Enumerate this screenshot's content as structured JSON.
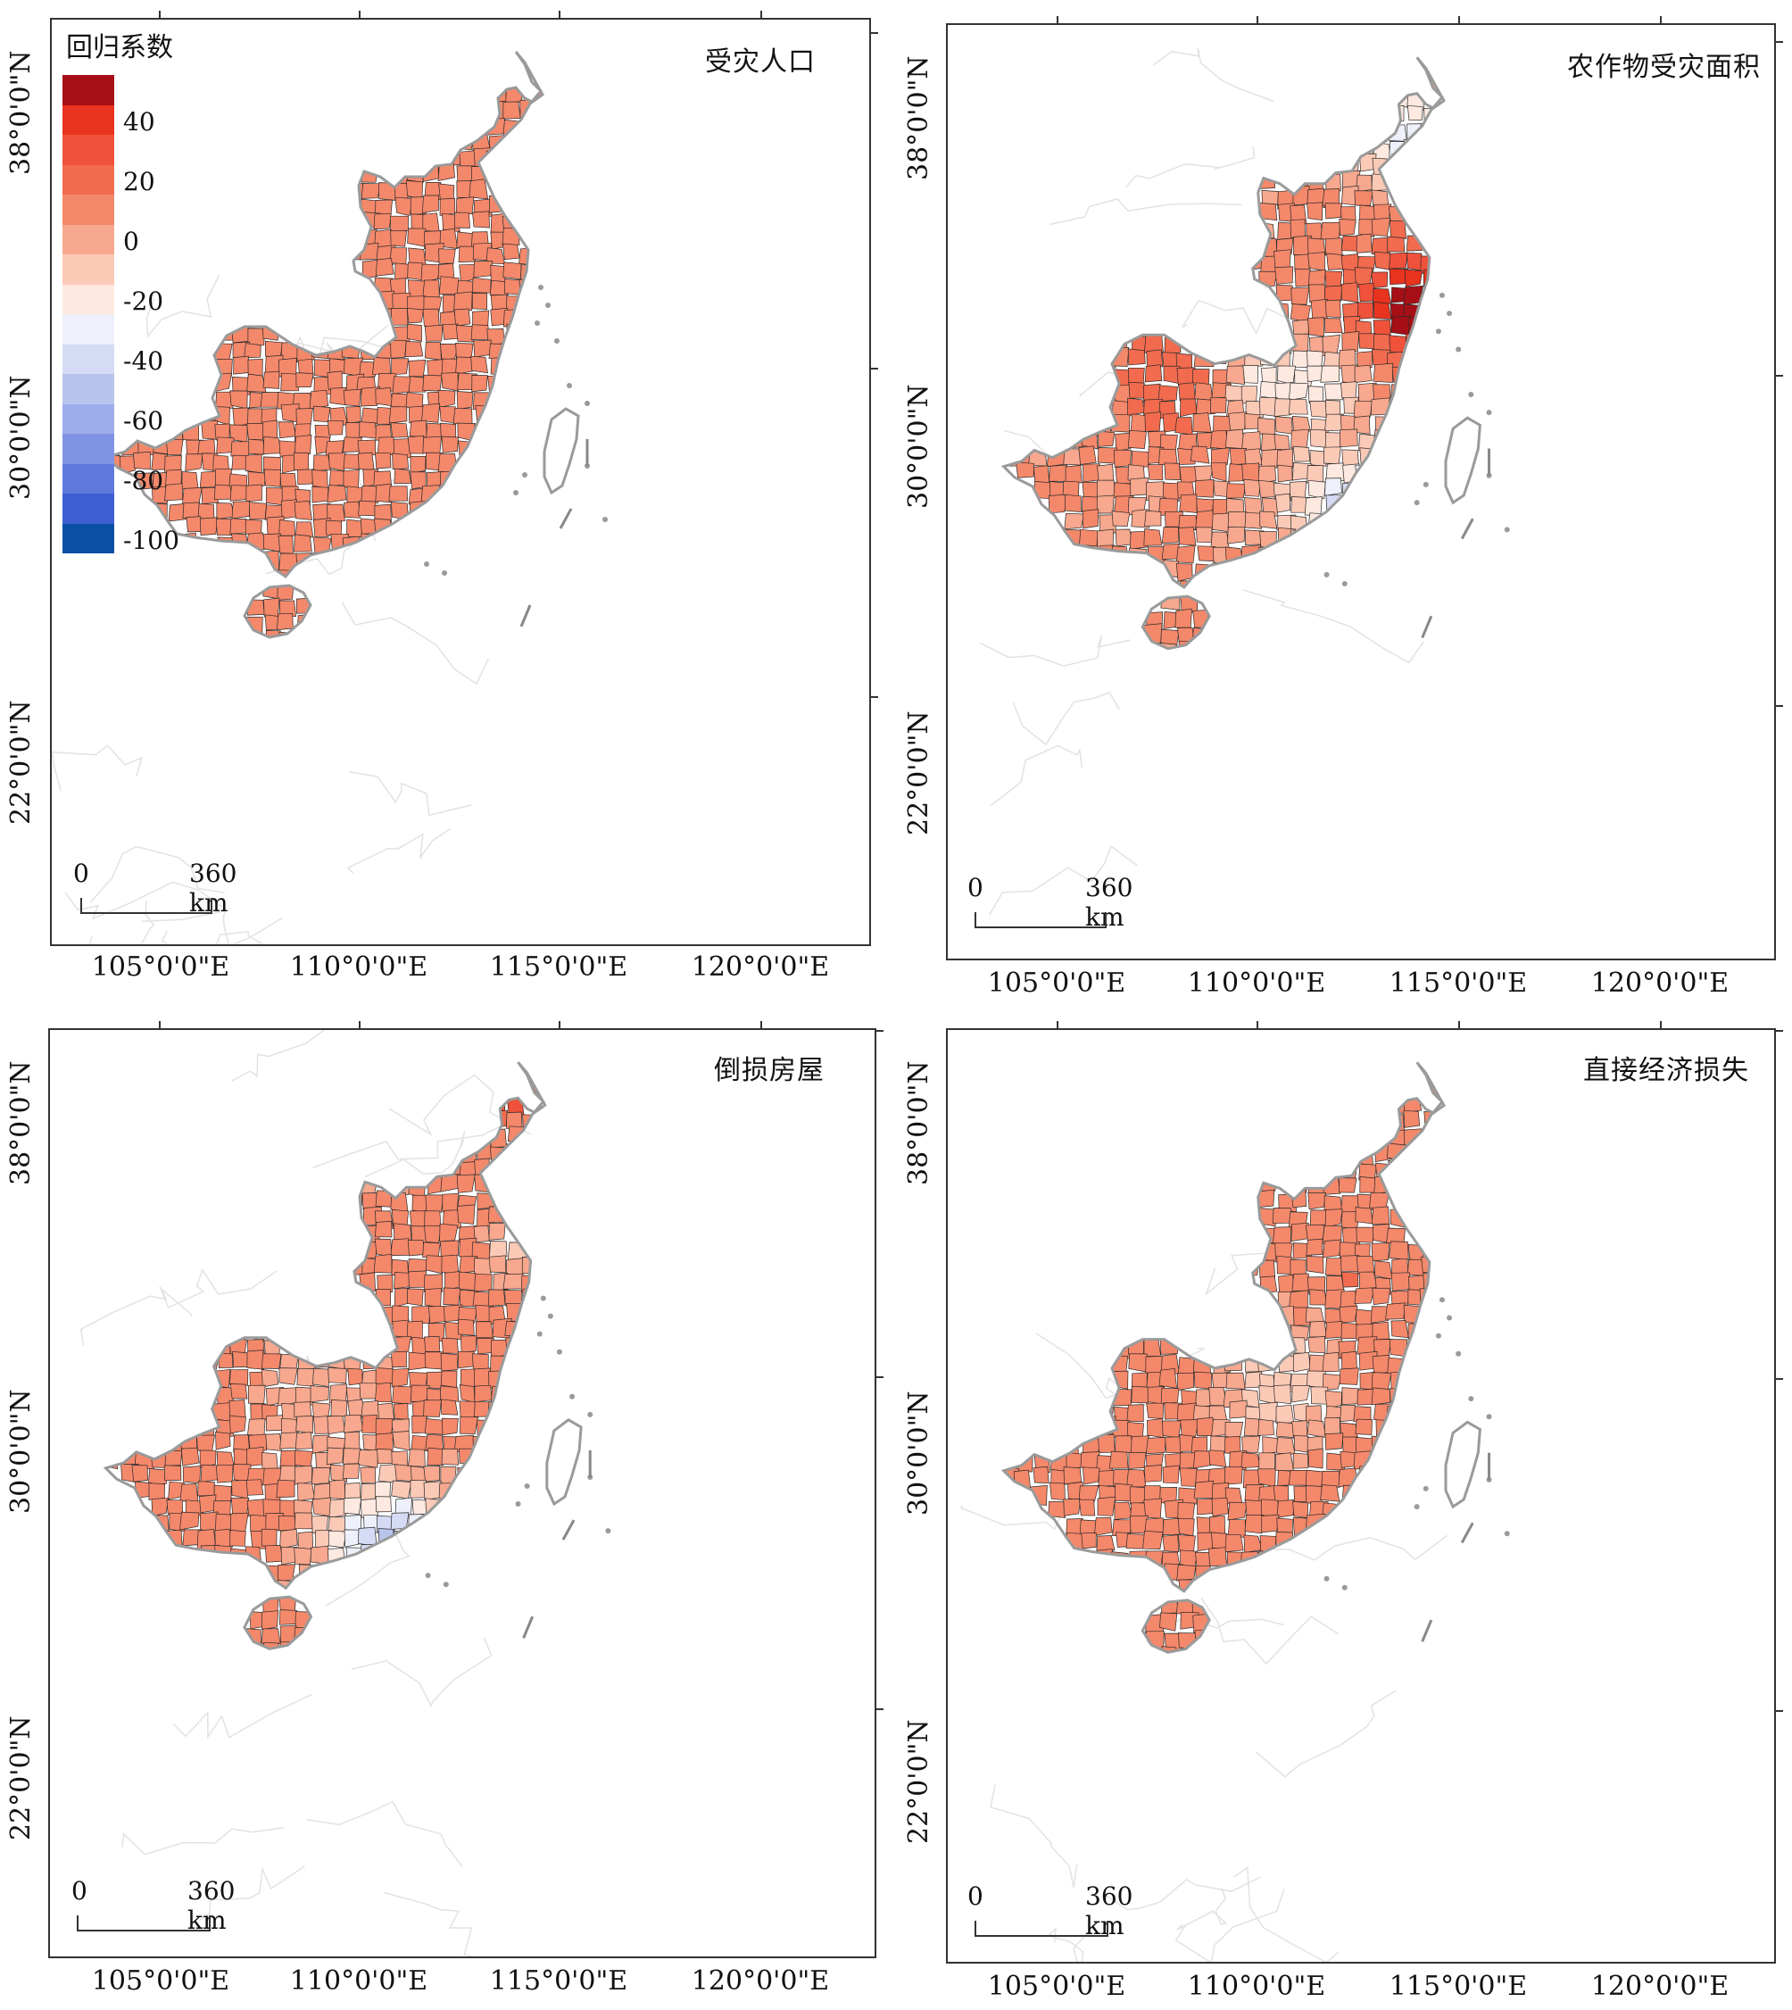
{
  "legend": {
    "title": "回归系数",
    "labels": [
      "40",
      "20",
      "0",
      "-20",
      "-40",
      "-60",
      "-80",
      "-100"
    ],
    "colors": [
      "#a50f15",
      "#e8331f",
      "#f0513a",
      "#f26b4e",
      "#f4886a",
      "#f7a88e",
      "#fbcab7",
      "#fde9e0",
      "#eef0fb",
      "#d5dbf4",
      "#b9c4ed",
      "#9dacea",
      "#7f93e4",
      "#5f79dd",
      "#3e5fd2",
      "#0b4fa5"
    ]
  },
  "axes": {
    "x_labels": [
      "105°0'0\"E",
      "110°0'0\"E",
      "115°0'0\"E",
      "120°0'0\"E"
    ],
    "y_labels": [
      "38°0'0\"N",
      "30°0'0\"N",
      "22°0'0\"N"
    ]
  },
  "scalebar": {
    "start": "0",
    "end": "360 km"
  },
  "panels": [
    {
      "title": "受灾人口",
      "fill": "#ef8a6d"
    },
    {
      "title": "农作物受灾面积",
      "fill": "#f4a58a"
    },
    {
      "title": "倒损房屋",
      "fill": "#f09477"
    },
    {
      "title": "直接经济损失",
      "fill": "#ef8e72"
    }
  ],
  "colors": {
    "frame": "#333333",
    "coast": "#9a9a9a",
    "boundary": "#2a2a2a",
    "bg_boundary": "#e2e2e2"
  }
}
